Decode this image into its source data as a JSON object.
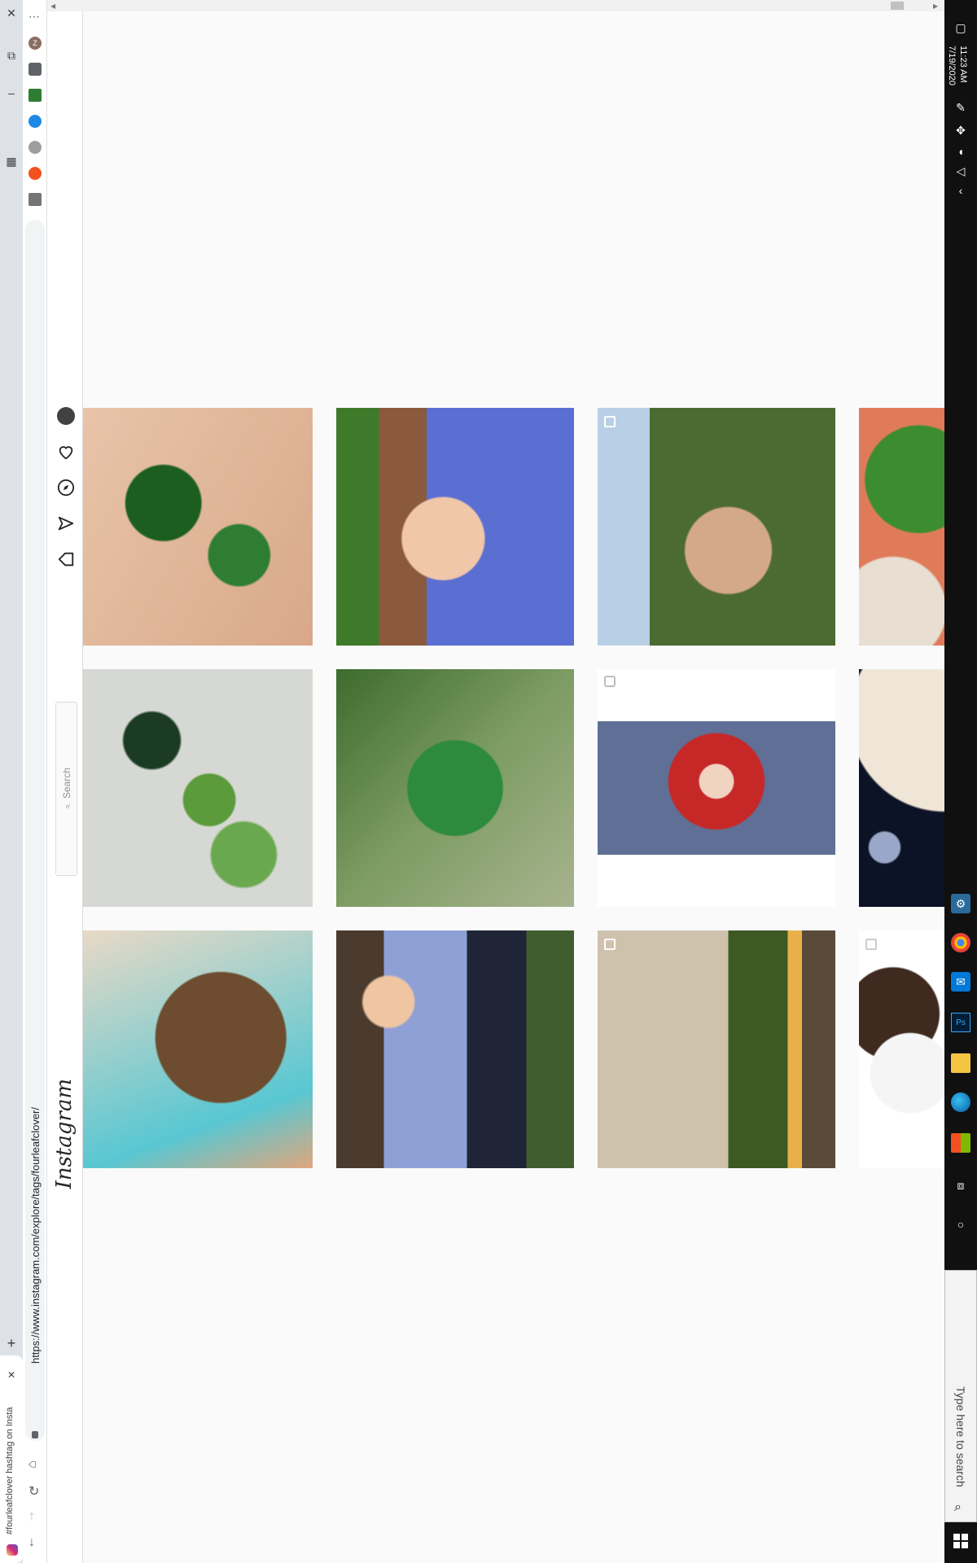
{
  "browser": {
    "tab_title": "#fourleafclover hashtag on Insta",
    "url": "https://www.instagram.com/explore/tags/fourleafclover/",
    "new_tab": "+",
    "close": "✕",
    "menu": "⋯",
    "profile_initial": "Z"
  },
  "instagram": {
    "logo": "Instagram",
    "search_placeholder": "Search"
  },
  "taskbar": {
    "time": "11:23 AM",
    "date": "7/19/2020",
    "search_placeholder": "Type here to search"
  },
  "colors": {
    "ig_border": "#dbdbdb",
    "taskbar_bg": "#101010",
    "accent_blue": "#0078d7"
  }
}
